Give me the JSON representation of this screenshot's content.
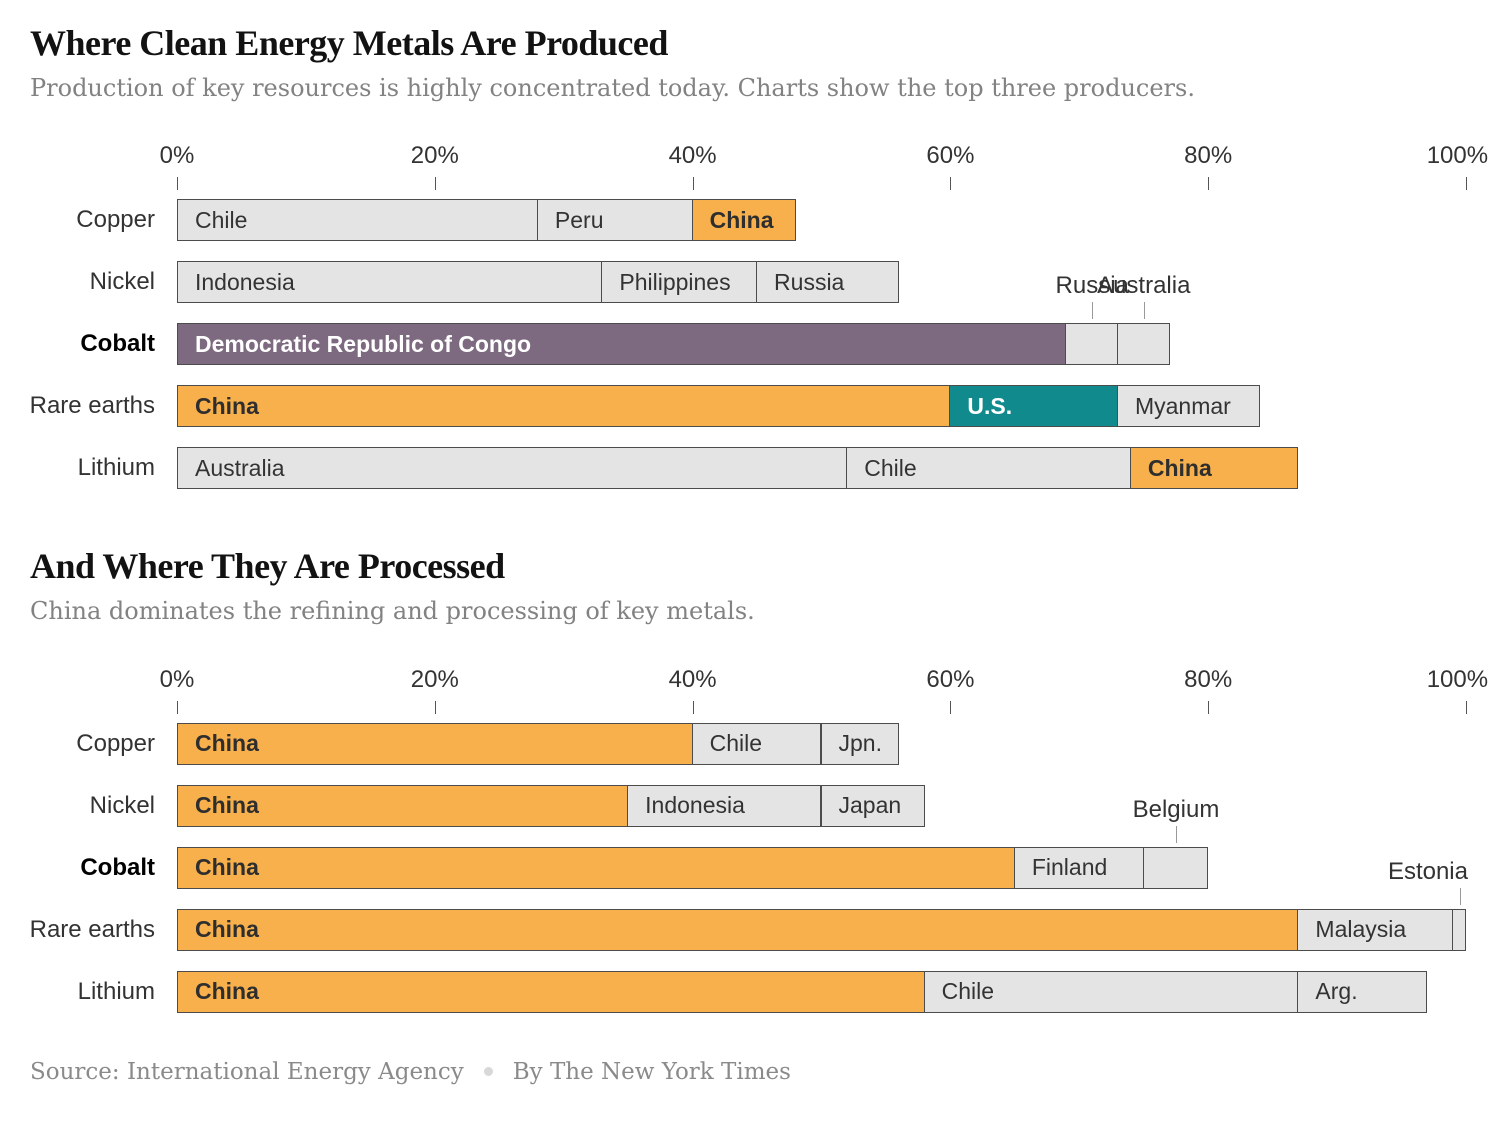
{
  "page": {
    "title_produced": "Where Clean Energy Metals Are Produced",
    "subtitle_produced": "Production of key resources is highly concentrated today. Charts show the top three producers.",
    "title_processed": "And Where They Are Processed",
    "subtitle_processed": "China dominates the refining and processing of key metals.",
    "source_label": "Source: International Energy Agency",
    "byline": "By The New York Times"
  },
  "colors": {
    "orange": "#F7B04C",
    "teal": "#118A8D",
    "purple": "#7E6A80",
    "gray": "#E4E4E4",
    "bar_border": "#4C4C4C",
    "dark_text": "#333333",
    "white_text": "#FFFFFF"
  },
  "chart_data": [
    {
      "type": "bar",
      "orientation": "horizontal-stacked",
      "title": "Where Clean Energy Metals Are Produced",
      "xlabel": "",
      "ylabel": "",
      "units": "%",
      "xlim": [
        0,
        100
      ],
      "x_ticks": [
        0,
        20,
        40,
        60,
        80,
        100
      ],
      "x_tick_suffix": "%",
      "legend": "none",
      "categories": [
        "Copper",
        "Nickel",
        "Cobalt",
        "Rare earths",
        "Lithium"
      ],
      "rows": [
        {
          "metal": "Copper",
          "bold": false,
          "segments": [
            {
              "name": "Chile",
              "value": 28,
              "color": "gray",
              "text": "dark",
              "label": "inside"
            },
            {
              "name": "Peru",
              "value": 12,
              "color": "gray",
              "text": "dark",
              "label": "inside"
            },
            {
              "name": "China",
              "value": 8,
              "color": "orange",
              "text": "dark-bold",
              "label": "inside"
            }
          ]
        },
        {
          "metal": "Nickel",
          "bold": false,
          "segments": [
            {
              "name": "Indonesia",
              "value": 33,
              "color": "gray",
              "text": "dark",
              "label": "inside"
            },
            {
              "name": "Philippines",
              "value": 12,
              "color": "gray",
              "text": "dark",
              "label": "inside"
            },
            {
              "name": "Russia",
              "value": 11,
              "color": "gray",
              "text": "dark",
              "label": "inside"
            }
          ]
        },
        {
          "metal": "Cobalt",
          "bold": true,
          "segments": [
            {
              "name": "Democratic Republic of Congo",
              "value": 69,
              "color": "purple",
              "text": "white-bold",
              "label": "inside"
            },
            {
              "name": "Russia",
              "value": 4,
              "color": "gray",
              "text": "dark",
              "label": "above"
            },
            {
              "name": "Australia",
              "value": 4,
              "color": "gray",
              "text": "dark",
              "label": "above"
            }
          ]
        },
        {
          "metal": "Rare earths",
          "bold": false,
          "segments": [
            {
              "name": "China",
              "value": 60,
              "color": "orange",
              "text": "dark-bold",
              "label": "inside"
            },
            {
              "name": "U.S.",
              "value": 13,
              "color": "teal",
              "text": "white-bold",
              "label": "inside"
            },
            {
              "name": "Myanmar",
              "value": 11,
              "color": "gray",
              "text": "dark",
              "label": "inside"
            }
          ]
        },
        {
          "metal": "Lithium",
          "bold": false,
          "segments": [
            {
              "name": "Australia",
              "value": 52,
              "color": "gray",
              "text": "dark",
              "label": "inside"
            },
            {
              "name": "Chile",
              "value": 22,
              "color": "gray",
              "text": "dark",
              "label": "inside"
            },
            {
              "name": "China",
              "value": 13,
              "color": "orange",
              "text": "dark-bold",
              "label": "inside"
            }
          ]
        }
      ]
    },
    {
      "type": "bar",
      "orientation": "horizontal-stacked",
      "title": "And Where They Are Processed",
      "xlabel": "",
      "ylabel": "",
      "units": "%",
      "xlim": [
        0,
        100
      ],
      "x_ticks": [
        0,
        20,
        40,
        60,
        80,
        100
      ],
      "x_tick_suffix": "%",
      "legend": "none",
      "categories": [
        "Copper",
        "Nickel",
        "Cobalt",
        "Rare earths",
        "Lithium"
      ],
      "rows": [
        {
          "metal": "Copper",
          "bold": false,
          "segments": [
            {
              "name": "China",
              "value": 40,
              "color": "orange",
              "text": "dark-bold",
              "label": "inside"
            },
            {
              "name": "Chile",
              "value": 10,
              "color": "gray",
              "text": "dark",
              "label": "inside"
            },
            {
              "name": "Jpn.",
              "value": 6,
              "color": "gray",
              "text": "dark",
              "label": "inside"
            }
          ]
        },
        {
          "metal": "Nickel",
          "bold": false,
          "segments": [
            {
              "name": "China",
              "value": 35,
              "color": "orange",
              "text": "dark-bold",
              "label": "inside"
            },
            {
              "name": "Indonesia",
              "value": 15,
              "color": "gray",
              "text": "dark",
              "label": "inside"
            },
            {
              "name": "Japan",
              "value": 8,
              "color": "gray",
              "text": "dark",
              "label": "inside"
            }
          ]
        },
        {
          "metal": "Cobalt",
          "bold": true,
          "segments": [
            {
              "name": "China",
              "value": 65,
              "color": "orange",
              "text": "dark-bold",
              "label": "inside"
            },
            {
              "name": "Finland",
              "value": 10,
              "color": "gray",
              "text": "dark",
              "label": "inside"
            },
            {
              "name": "Belgium",
              "value": 5,
              "color": "gray",
              "text": "dark",
              "label": "above"
            }
          ]
        },
        {
          "metal": "Rare earths",
          "bold": false,
          "segments": [
            {
              "name": "China",
              "value": 87,
              "color": "orange",
              "text": "dark-bold",
              "label": "inside"
            },
            {
              "name": "Malaysia",
              "value": 12,
              "color": "gray",
              "text": "dark",
              "label": "inside"
            },
            {
              "name": "Estonia",
              "value": 1,
              "color": "gray",
              "text": "dark",
              "label": "above-right"
            }
          ]
        },
        {
          "metal": "Lithium",
          "bold": false,
          "segments": [
            {
              "name": "China",
              "value": 58,
              "color": "orange",
              "text": "dark-bold",
              "label": "inside"
            },
            {
              "name": "Chile",
              "value": 29,
              "color": "gray",
              "text": "dark",
              "label": "inside"
            },
            {
              "name": "Arg.",
              "value": 10,
              "color": "gray",
              "text": "dark",
              "label": "inside"
            }
          ]
        }
      ]
    }
  ]
}
